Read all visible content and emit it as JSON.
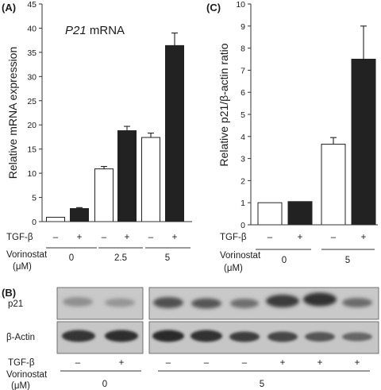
{
  "colors": {
    "control": "#ffffff",
    "treated": "#222222",
    "axis": "#333333",
    "blot_bg": "#c8c8c8"
  },
  "chart_data": [
    {
      "panel": "(A)",
      "type": "bar",
      "title": "P21 mRNA",
      "title_italic_part": "P21",
      "title_rest": " mRNA",
      "ylabel": "Relative mRNA expression",
      "ylim": [
        0,
        45
      ],
      "yticks": [
        0,
        5,
        10,
        15,
        20,
        25,
        30,
        35,
        40,
        45
      ],
      "row_labels": {
        "tgf": "TGF-β",
        "vorinostat": "Vorinostat",
        "unit": "(μM)"
      },
      "tgf_signs": [
        "–",
        "+",
        "–",
        "+",
        "–",
        "+"
      ],
      "groups": [
        "0",
        "2.5",
        "5"
      ],
      "bars": [
        {
          "tgf": "–",
          "vorinostat": "0",
          "value": 0.9,
          "error": 0,
          "series": "control"
        },
        {
          "tgf": "+",
          "vorinostat": "0",
          "value": 2.7,
          "error": 0.2,
          "series": "treated"
        },
        {
          "tgf": "–",
          "vorinostat": "2.5",
          "value": 10.9,
          "error": 0.5,
          "series": "control"
        },
        {
          "tgf": "+",
          "vorinostat": "2.5",
          "value": 18.8,
          "error": 0.9,
          "series": "treated"
        },
        {
          "tgf": "–",
          "vorinostat": "5",
          "value": 17.4,
          "error": 0.9,
          "series": "control"
        },
        {
          "tgf": "+",
          "vorinostat": "5",
          "value": 36.4,
          "error": 2.6,
          "series": "treated"
        }
      ]
    },
    {
      "panel": "(C)",
      "type": "bar",
      "ylabel": "Relative p21/β-actin ratio",
      "ylim": [
        0,
        10
      ],
      "yticks": [
        0,
        1,
        2,
        3,
        4,
        5,
        6,
        7,
        8,
        9,
        10
      ],
      "row_labels": {
        "tgf": "TGF-β",
        "vorinostat": "Vorinostat",
        "unit": "(μM)"
      },
      "tgf_signs": [
        "–",
        "+",
        "–",
        "+"
      ],
      "groups": [
        "0",
        "5"
      ],
      "bars": [
        {
          "tgf": "–",
          "vorinostat": "0",
          "value": 1.0,
          "error": 0,
          "series": "control"
        },
        {
          "tgf": "+",
          "vorinostat": "0",
          "value": 1.05,
          "error": 0,
          "series": "treated"
        },
        {
          "tgf": "–",
          "vorinostat": "5",
          "value": 3.65,
          "error": 0.3,
          "series": "control"
        },
        {
          "tgf": "+",
          "vorinostat": "5",
          "value": 7.5,
          "error": 1.5,
          "series": "treated"
        }
      ]
    }
  ],
  "blot": {
    "panel": "(B)",
    "rows": [
      "p21",
      "β-Actin"
    ],
    "tgf_label": "TGF-β",
    "vorinostat_label": "Vorinostat",
    "unit": "(μM)",
    "tgf_signs": [
      "–",
      "+",
      "–",
      "–",
      "–",
      "+",
      "+",
      "+"
    ],
    "groups": [
      "0",
      "5"
    ]
  }
}
